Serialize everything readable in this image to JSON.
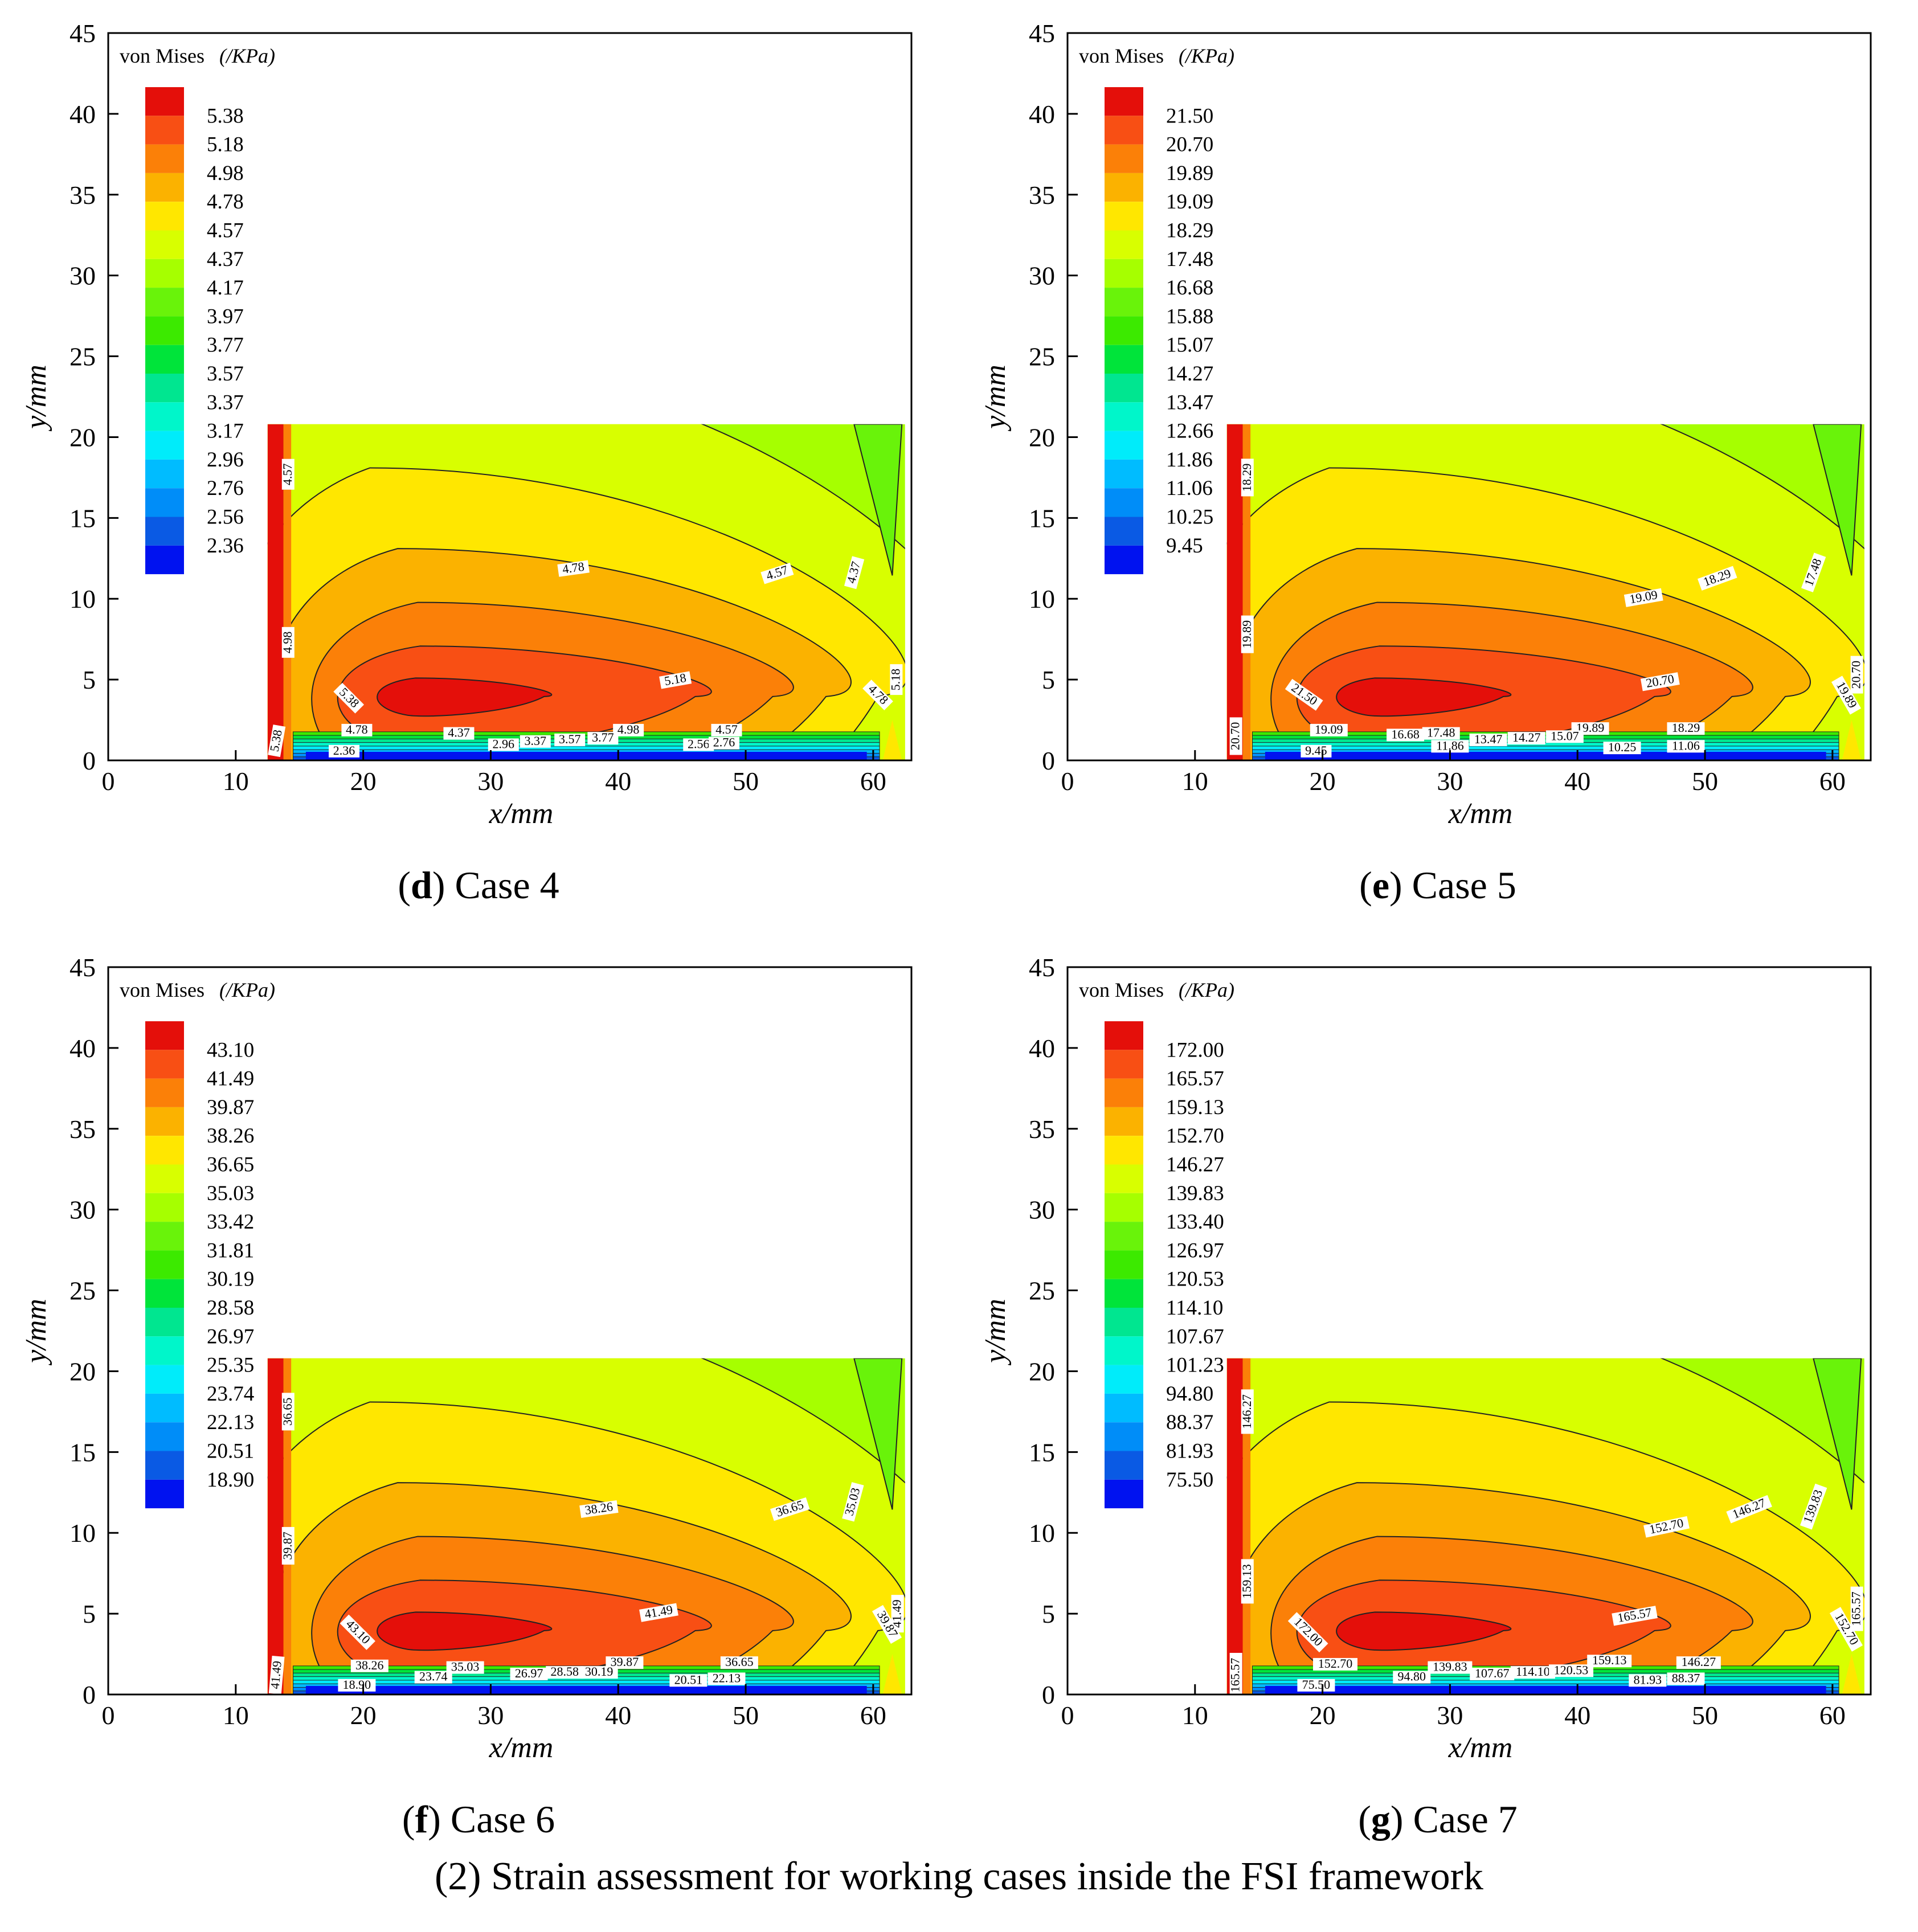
{
  "figure_caption": "(2) Strain assessment for working cases inside the FSI framework",
  "chart_data": [
    {
      "type": "contour",
      "panel_letter": "d",
      "panel_title": "Case 4",
      "xlabel": "x/mm",
      "ylabel": "y/mm",
      "xlim": [
        0,
        63
      ],
      "ylim": [
        0,
        45
      ],
      "x_ticks": [
        0,
        10,
        20,
        30,
        40,
        50,
        60
      ],
      "y_ticks": [
        0,
        5,
        10,
        15,
        20,
        25,
        30,
        35,
        40,
        45
      ],
      "domain": {
        "x": [
          12.5,
          62.5
        ],
        "y": [
          0,
          20.8
        ]
      },
      "legend_title": "von Mises",
      "legend_unit": "(/KPa)",
      "levels": [
        "5.38",
        "5.18",
        "4.98",
        "4.78",
        "4.57",
        "4.37",
        "4.17",
        "3.97",
        "3.77",
        "3.57",
        "3.37",
        "3.17",
        "2.96",
        "2.76",
        "2.56",
        "2.36"
      ],
      "contour_labels": [
        {
          "text": "4.57",
          "x": 14.2,
          "y": 17.7,
          "angle": 90
        },
        {
          "text": "4.98",
          "x": 14.2,
          "y": 7.3,
          "angle": 90
        },
        {
          "text": "5.38",
          "x": 13.3,
          "y": 1.2,
          "angle": 80
        },
        {
          "text": "4.78",
          "x": 36.5,
          "y": 11.8,
          "angle": 8
        },
        {
          "text": "4.57",
          "x": 52.5,
          "y": 11.5,
          "angle": 18
        },
        {
          "text": "4.37",
          "x": 58.6,
          "y": 11.6,
          "angle": 75
        },
        {
          "text": "5.18",
          "x": 44.5,
          "y": 4.9,
          "angle": 10
        },
        {
          "text": "5.38",
          "x": 18.8,
          "y": 3.8,
          "angle": -45
        },
        {
          "text": "5.18",
          "x": 61.9,
          "y": 5.0,
          "angle": 90
        },
        {
          "text": "4.78",
          "x": 60.3,
          "y": 4.0,
          "angle": -45
        },
        {
          "text": "4.78",
          "x": 19.5,
          "y": 1.8,
          "angle": 0
        },
        {
          "text": "4.37",
          "x": 27.5,
          "y": 1.6,
          "angle": 0
        },
        {
          "text": "4.98",
          "x": 40.8,
          "y": 1.8,
          "angle": 0
        },
        {
          "text": "4.57",
          "x": 48.5,
          "y": 1.8,
          "angle": 0
        },
        {
          "text": "2.36",
          "x": 18.5,
          "y": 0.5,
          "angle": 0
        },
        {
          "text": "2.96",
          "x": 31.0,
          "y": 0.9,
          "angle": 0
        },
        {
          "text": "3.37",
          "x": 33.5,
          "y": 1.1,
          "angle": 0
        },
        {
          "text": "3.57",
          "x": 36.2,
          "y": 1.2,
          "angle": 0
        },
        {
          "text": "3.77",
          "x": 38.8,
          "y": 1.3,
          "angle": 0
        },
        {
          "text": "2.56",
          "x": 46.3,
          "y": 0.9,
          "angle": 0
        },
        {
          "text": "2.76",
          "x": 48.3,
          "y": 1.0,
          "angle": 0
        }
      ]
    },
    {
      "type": "contour",
      "panel_letter": "e",
      "panel_title": "Case 5",
      "xlabel": "x/mm",
      "ylabel": "y/mm",
      "xlim": [
        0,
        63
      ],
      "ylim": [
        0,
        45
      ],
      "x_ticks": [
        0,
        10,
        20,
        30,
        40,
        50,
        60
      ],
      "y_ticks": [
        0,
        5,
        10,
        15,
        20,
        25,
        30,
        35,
        40,
        45
      ],
      "domain": {
        "x": [
          12.5,
          62.5
        ],
        "y": [
          0,
          20.8
        ]
      },
      "legend_title": "von Mises",
      "legend_unit": "(/KPa)",
      "levels": [
        "21.50",
        "20.70",
        "19.89",
        "19.09",
        "18.29",
        "17.48",
        "16.68",
        "15.88",
        "15.07",
        "14.27",
        "13.47",
        "12.66",
        "11.86",
        "11.06",
        "10.25",
        "9.45"
      ],
      "contour_labels": [
        {
          "text": "18.29",
          "x": 14.2,
          "y": 17.5,
          "angle": 90
        },
        {
          "text": "19.89",
          "x": 14.2,
          "y": 7.8,
          "angle": 90
        },
        {
          "text": "20.70",
          "x": 13.3,
          "y": 1.5,
          "angle": 90
        },
        {
          "text": "19.09",
          "x": 45.2,
          "y": 10.0,
          "angle": 10
        },
        {
          "text": "18.29",
          "x": 51.0,
          "y": 11.2,
          "angle": 20
        },
        {
          "text": "17.48",
          "x": 58.6,
          "y": 11.6,
          "angle": 70
        },
        {
          "text": "20.70",
          "x": 46.5,
          "y": 4.8,
          "angle": 10
        },
        {
          "text": "21.50",
          "x": 18.5,
          "y": 4.0,
          "angle": -35
        },
        {
          "text": "20.70",
          "x": 62.0,
          "y": 5.3,
          "angle": 90
        },
        {
          "text": "19.89",
          "x": 61.0,
          "y": 4.0,
          "angle": -60
        },
        {
          "text": "19.09",
          "x": 20.5,
          "y": 1.8,
          "angle": 0
        },
        {
          "text": "16.68",
          "x": 26.5,
          "y": 1.5,
          "angle": 0
        },
        {
          "text": "17.48",
          "x": 29.3,
          "y": 1.6,
          "angle": 0
        },
        {
          "text": "19.89",
          "x": 41.0,
          "y": 1.9,
          "angle": 0
        },
        {
          "text": "18.29",
          "x": 48.5,
          "y": 1.9,
          "angle": 0
        },
        {
          "text": "9.45",
          "x": 19.5,
          "y": 0.5,
          "angle": 0
        },
        {
          "text": "11.86",
          "x": 30.0,
          "y": 0.8,
          "angle": 0
        },
        {
          "text": "13.47",
          "x": 33.0,
          "y": 1.2,
          "angle": 0
        },
        {
          "text": "14.27",
          "x": 36.0,
          "y": 1.3,
          "angle": 0
        },
        {
          "text": "15.07",
          "x": 39.0,
          "y": 1.4,
          "angle": 0
        },
        {
          "text": "10.25",
          "x": 43.5,
          "y": 0.7,
          "angle": 0
        },
        {
          "text": "11.06",
          "x": 48.5,
          "y": 0.8,
          "angle": 0
        }
      ]
    },
    {
      "type": "contour",
      "panel_letter": "f",
      "panel_title": "Case 6",
      "xlabel": "x/mm",
      "ylabel": "y/mm",
      "xlim": [
        0,
        63
      ],
      "ylim": [
        0,
        45
      ],
      "x_ticks": [
        0,
        10,
        20,
        30,
        40,
        50,
        60
      ],
      "y_ticks": [
        0,
        5,
        10,
        15,
        20,
        25,
        30,
        35,
        40,
        45
      ],
      "domain": {
        "x": [
          12.5,
          62.5
        ],
        "y": [
          0,
          20.8
        ]
      },
      "legend_title": "von Mises",
      "legend_unit": "(/KPa)",
      "levels": [
        "43.10",
        "41.49",
        "39.87",
        "38.26",
        "36.65",
        "35.03",
        "33.42",
        "31.81",
        "30.19",
        "28.58",
        "26.97",
        "25.35",
        "23.74",
        "22.13",
        "20.51",
        "18.90"
      ],
      "contour_labels": [
        {
          "text": "36.65",
          "x": 14.2,
          "y": 17.5,
          "angle": 90
        },
        {
          "text": "39.87",
          "x": 14.2,
          "y": 9.2,
          "angle": 90
        },
        {
          "text": "41.49",
          "x": 13.3,
          "y": 1.2,
          "angle": 85
        },
        {
          "text": "38.26",
          "x": 38.5,
          "y": 11.4,
          "angle": 8
        },
        {
          "text": "36.65",
          "x": 53.5,
          "y": 11.4,
          "angle": 18
        },
        {
          "text": "35.03",
          "x": 58.5,
          "y": 11.9,
          "angle": 75
        },
        {
          "text": "41.49",
          "x": 43.2,
          "y": 5.0,
          "angle": 10
        },
        {
          "text": "43.10",
          "x": 19.5,
          "y": 3.8,
          "angle": -45
        },
        {
          "text": "41.49",
          "x": 62.0,
          "y": 5.0,
          "angle": 90
        },
        {
          "text": "39.87",
          "x": 61.0,
          "y": 4.3,
          "angle": -60
        },
        {
          "text": "38.26",
          "x": 20.5,
          "y": 1.7,
          "angle": 0
        },
        {
          "text": "35.03",
          "x": 28.0,
          "y": 1.6,
          "angle": 0
        },
        {
          "text": "39.87",
          "x": 40.5,
          "y": 1.9,
          "angle": 0
        },
        {
          "text": "36.65",
          "x": 49.5,
          "y": 1.9,
          "angle": 0
        },
        {
          "text": "18.90",
          "x": 19.5,
          "y": 0.5,
          "angle": 0
        },
        {
          "text": "23.74",
          "x": 25.5,
          "y": 1.0,
          "angle": 0
        },
        {
          "text": "26.97",
          "x": 33.0,
          "y": 1.2,
          "angle": 0
        },
        {
          "text": "28.58",
          "x": 35.8,
          "y": 1.3,
          "angle": 0
        },
        {
          "text": "30.19",
          "x": 38.5,
          "y": 1.3,
          "angle": 0
        },
        {
          "text": "20.51",
          "x": 45.5,
          "y": 0.8,
          "angle": 0
        },
        {
          "text": "22.13",
          "x": 48.5,
          "y": 0.9,
          "angle": 0
        }
      ]
    },
    {
      "type": "contour",
      "panel_letter": "g",
      "panel_title": "Case 7",
      "xlabel": "x/mm",
      "ylabel": "y/mm",
      "xlim": [
        0,
        63
      ],
      "ylim": [
        0,
        45
      ],
      "x_ticks": [
        0,
        10,
        20,
        30,
        40,
        50,
        60
      ],
      "y_ticks": [
        0,
        5,
        10,
        15,
        20,
        25,
        30,
        35,
        40,
        45
      ],
      "domain": {
        "x": [
          12.5,
          62.5
        ],
        "y": [
          0,
          20.8
        ]
      },
      "legend_title": "von Mises",
      "legend_unit": "(/KPa)",
      "levels": [
        "172.00",
        "165.57",
        "159.13",
        "152.70",
        "146.27",
        "139.83",
        "133.40",
        "126.97",
        "120.53",
        "114.10",
        "107.67",
        "101.23",
        "94.80",
        "88.37",
        "81.93",
        "75.50"
      ],
      "contour_labels": [
        {
          "text": "146.27",
          "x": 14.2,
          "y": 17.5,
          "angle": 90
        },
        {
          "text": "159.13",
          "x": 14.2,
          "y": 7.0,
          "angle": 90
        },
        {
          "text": "165.57",
          "x": 13.3,
          "y": 1.2,
          "angle": 90
        },
        {
          "text": "152.70",
          "x": 47.0,
          "y": 10.3,
          "angle": 12
        },
        {
          "text": "146.27",
          "x": 53.5,
          "y": 11.4,
          "angle": 22
        },
        {
          "text": "139.83",
          "x": 58.6,
          "y": 11.6,
          "angle": 70
        },
        {
          "text": "165.57",
          "x": 44.5,
          "y": 4.8,
          "angle": 10
        },
        {
          "text": "172.00",
          "x": 18.8,
          "y": 3.8,
          "angle": -45
        },
        {
          "text": "165.57",
          "x": 62.0,
          "y": 5.3,
          "angle": 90
        },
        {
          "text": "152.70",
          "x": 61.0,
          "y": 4.0,
          "angle": -60
        },
        {
          "text": "152.70",
          "x": 21.0,
          "y": 1.8,
          "angle": 0
        },
        {
          "text": "139.83",
          "x": 30.0,
          "y": 1.6,
          "angle": 0
        },
        {
          "text": "159.13",
          "x": 42.5,
          "y": 2.0,
          "angle": 0
        },
        {
          "text": "146.27",
          "x": 49.5,
          "y": 1.9,
          "angle": 0
        },
        {
          "text": "75.50",
          "x": 19.5,
          "y": 0.5,
          "angle": 0
        },
        {
          "text": "94.80",
          "x": 27.0,
          "y": 1.0,
          "angle": 0
        },
        {
          "text": "107.67",
          "x": 33.3,
          "y": 1.2,
          "angle": 0
        },
        {
          "text": "114.10",
          "x": 36.5,
          "y": 1.3,
          "angle": 0
        },
        {
          "text": "120.53",
          "x": 39.5,
          "y": 1.4,
          "angle": 0
        },
        {
          "text": "81.93",
          "x": 45.5,
          "y": 0.8,
          "angle": 0
        },
        {
          "text": "88.37",
          "x": 48.5,
          "y": 0.9,
          "angle": 0
        }
      ]
    }
  ],
  "colors": {
    "levels": [
      "#e40f0a",
      "#f84f14",
      "#fb8008",
      "#fbb200",
      "#ffe700",
      "#d8ff00",
      "#a6ff00",
      "#69f30a",
      "#3cea00",
      "#00e43a",
      "#00e690",
      "#00f6ca",
      "#00ecfa",
      "#00bcff",
      "#008df8",
      "#0a5ae4",
      "#0012f0"
    ]
  }
}
